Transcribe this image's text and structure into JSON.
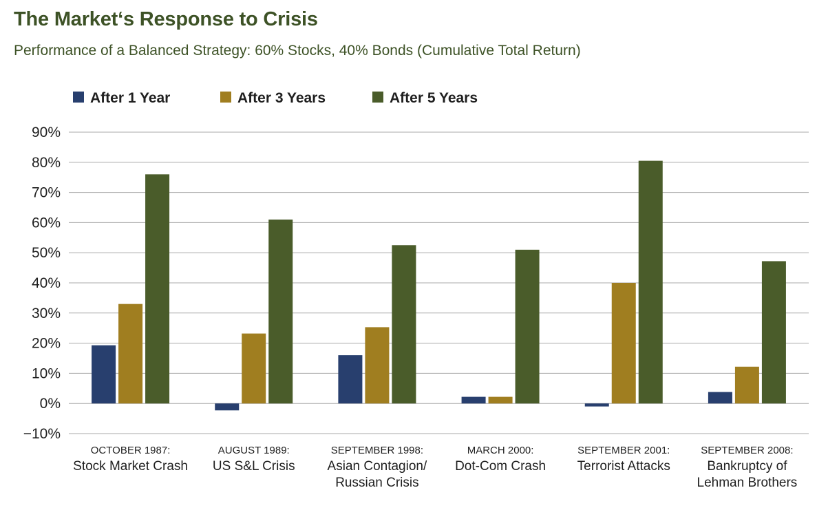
{
  "title": "The Market‘s Response to Crisis",
  "subtitle": "Performance of a Balanced Strategy: 60% Stocks, 40% Bonds (Cumulative Total Return)",
  "chart_data": {
    "type": "bar",
    "title": "The Market‘s Response to Crisis",
    "subtitle": "Performance of a Balanced Strategy: 60% Stocks, 40% Bonds (Cumulative Total Return)",
    "xlabel": "",
    "ylabel": "",
    "ylim": [
      -10,
      90
    ],
    "yticks": [
      "90%",
      "80%",
      "70%",
      "60%",
      "50%",
      "40%",
      "30%",
      "20%",
      "10%",
      "0%",
      "−10%"
    ],
    "ytick_values": [
      90,
      80,
      70,
      60,
      50,
      40,
      30,
      20,
      10,
      0,
      -10
    ],
    "grid": true,
    "legend_position": "top",
    "categories": [
      [
        "OCTOBER 1987:",
        "Stock Market Crash"
      ],
      [
        "AUGUST 1989:",
        "US S&L Crisis"
      ],
      [
        "SEPTEMBER 1998:",
        "Asian Contagion/",
        "Russian Crisis"
      ],
      [
        "MARCH 2000:",
        "Dot-Com Crash"
      ],
      [
        "SEPTEMBER 2001:",
        "Terrorist Attacks"
      ],
      [
        "SEPTEMBER 2008:",
        "Bankruptcy of",
        "Lehman Brothers"
      ]
    ],
    "series": [
      {
        "name": "After 1 Year",
        "color": "#283f6e",
        "values": [
          19.3,
          -2.3,
          16.0,
          2.2,
          -1.0,
          3.8
        ]
      },
      {
        "name": "After 3 Years",
        "color": "#a07e20",
        "values": [
          33.0,
          23.2,
          25.3,
          2.2,
          40.0,
          12.2
        ]
      },
      {
        "name": "After 5 Years",
        "color": "#4a5c2a",
        "values": [
          76.0,
          61.0,
          52.5,
          51.0,
          80.5,
          47.2
        ]
      }
    ]
  }
}
